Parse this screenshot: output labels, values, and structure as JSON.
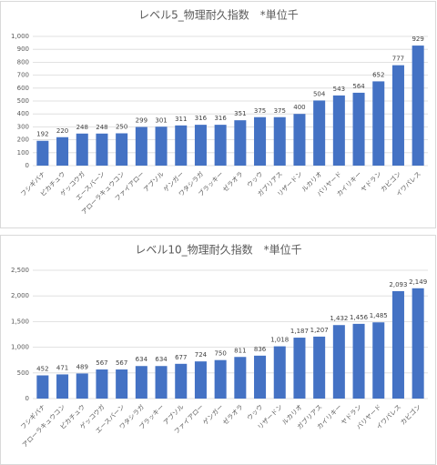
{
  "chart_data": [
    {
      "type": "bar",
      "title": "レベル5_物理耐久指数　*単位千",
      "color": "#4472c4",
      "grid": true,
      "categories": [
        "フシギバナ",
        "ピカチュウ",
        "ゲッコウガ",
        "エースバーン",
        "アローラキュウコン",
        "ファイアロー",
        "アブソル",
        "ゲンガー",
        "ワタシラガ",
        "ブラッキー",
        "ゼラオラ",
        "ウッウ",
        "ガブリアス",
        "リザードン",
        "ルカリオ",
        "バリヤード",
        "カイリキー",
        "ヤドラン",
        "カビゴン",
        "イワパレス"
      ],
      "values": [
        192,
        220,
        248,
        248,
        250,
        299,
        301,
        311,
        316,
        316,
        351,
        375,
        375,
        400,
        504,
        543,
        564,
        652,
        777,
        929
      ],
      "ylim": [
        0,
        1000
      ],
      "yticks": [
        0,
        100,
        200,
        300,
        400,
        500,
        600,
        700,
        800,
        900,
        {
          "value": 1000,
          "label": "1,000"
        }
      ]
    },
    {
      "type": "bar",
      "title": "レベル10_物理耐久指数　*単位千",
      "color": "#4472c4",
      "grid": true,
      "categories": [
        "フシギバナ",
        "アローラキュウコン",
        "ピカチュウ",
        "ゲッコウガ",
        "エースバーン",
        "ワタシラガ",
        "ブラッキー",
        "アブソル",
        "ファイアロー",
        "ゲンガー",
        "ゼラオラ",
        "ウッウ",
        "リザードン",
        "ルカリオ",
        "ガブリアス",
        "カイリキー",
        "ヤドラン",
        "バリヤード",
        "イワパレス",
        "カビゴン"
      ],
      "values": [
        452,
        471,
        489,
        567,
        567,
        634,
        634,
        677,
        724,
        750,
        811,
        836,
        1018,
        1187,
        1207,
        1432,
        1456,
        1485,
        2093,
        2149
      ],
      "value_labels": [
        "452",
        "471",
        "489",
        "567",
        "567",
        "634",
        "634",
        "677",
        "724",
        "750",
        "811",
        "836",
        "1,018",
        "1,187",
        "1,207",
        "1,432",
        "1,456",
        "1,485",
        "2,093",
        "2,149"
      ],
      "ylim": [
        0,
        2500
      ],
      "yticks": [
        0,
        500,
        {
          "value": 1000,
          "label": "1,000"
        },
        {
          "value": 1500,
          "label": "1,500"
        },
        {
          "value": 2000,
          "label": "2,000"
        },
        {
          "value": 2500,
          "label": "2,500"
        }
      ]
    }
  ]
}
